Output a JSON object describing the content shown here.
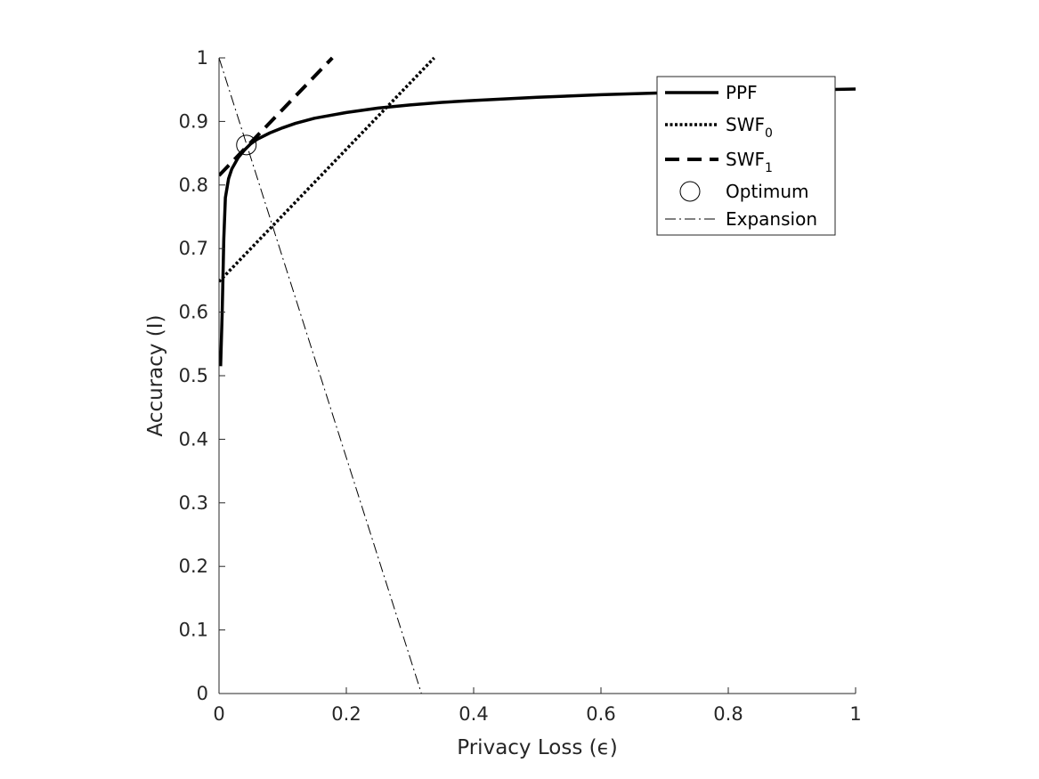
{
  "chart_data": {
    "type": "line",
    "xlabel": "Privacy Loss (ϵ)",
    "ylabel": "Accuracy (I)",
    "xlim": [
      0,
      1
    ],
    "ylim": [
      0,
      1
    ],
    "x_ticks": [
      "0",
      "0.2",
      "0.4",
      "0.6",
      "0.8",
      "1"
    ],
    "y_ticks": [
      "0",
      "0.1",
      "0.2",
      "0.3",
      "0.4",
      "0.5",
      "0.6",
      "0.7",
      "0.8",
      "0.9",
      "1"
    ],
    "grid": false,
    "legend_position": "top-right",
    "series": [
      {
        "name": "PPF",
        "style": "solid",
        "x": [
          0.0025,
          0.005,
          0.0075,
          0.01,
          0.015,
          0.02,
          0.03,
          0.04,
          0.05,
          0.06,
          0.08,
          0.1,
          0.12,
          0.15,
          0.2,
          0.25,
          0.3,
          0.35,
          0.4,
          0.5,
          0.6,
          0.7,
          0.8,
          0.9,
          1.0
        ],
        "y": [
          0.515,
          0.6,
          0.715,
          0.78,
          0.81,
          0.825,
          0.843,
          0.855,
          0.865,
          0.872,
          0.882,
          0.89,
          0.897,
          0.905,
          0.914,
          0.921,
          0.926,
          0.93,
          0.933,
          0.938,
          0.942,
          0.945,
          0.947,
          0.949,
          0.951
        ]
      },
      {
        "name": "SWF",
        "subscript": "0",
        "style": "dotted",
        "x": [
          0,
          0.338
        ],
        "y": [
          0.648,
          1.0
        ]
      },
      {
        "name": "SWF",
        "subscript": "1",
        "style": "dashed",
        "x": [
          0,
          0.178
        ],
        "y": [
          0.815,
          1.0
        ]
      },
      {
        "name": "Optimum",
        "style": "marker-circle",
        "x": [
          0.043
        ],
        "y": [
          0.863
        ]
      },
      {
        "name": "Expansion",
        "style": "dash-dot",
        "x": [
          0,
          0.318
        ],
        "y": [
          1.0,
          0
        ]
      }
    ]
  }
}
